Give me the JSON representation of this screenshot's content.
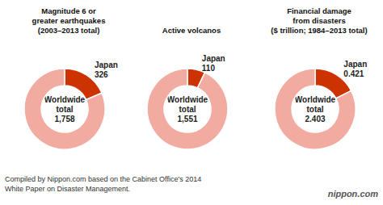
{
  "chart_data": [
    {
      "type": "pie",
      "title": "Magnitude 6 or\ngreater earthquakes\n(2003–2013 total)",
      "categories": [
        "Japan",
        null
      ],
      "values": [
        326,
        1432
      ],
      "value_labels": [
        "Japan\n326",
        null
      ],
      "colors": [
        "#cc3300",
        "#f2aba0"
      ],
      "annotations": [
        "Worldwide\ntotal\n1,758"
      ]
    },
    {
      "type": "pie",
      "title": "Active volcanos",
      "categories": [
        "Japan",
        null
      ],
      "values": [
        110,
        1441
      ],
      "value_labels": [
        "Japan\n110",
        null
      ],
      "colors": [
        "#cc3300",
        "#f2aba0"
      ],
      "annotations": [
        "Worldwide\ntotal\n1,551"
      ]
    },
    {
      "type": "pie",
      "title": "Financial damage\nfrom disasters\n($ trillion; 1984–2013 total)",
      "categories": [
        "Japan",
        null
      ],
      "values": [
        0.421,
        1.982
      ],
      "value_labels": [
        "Japan\n0.421",
        null
      ],
      "colors": [
        "#cc3300",
        "#f2aba0"
      ],
      "annotations": [
        "Worldwide\ntotal\n2.403"
      ]
    }
  ],
  "annotations": [
    "Compiled by Nippon.com based on the Cabinet Office's 2014\nWhite Paper on Disaster Management.",
    "nippon.com"
  ]
}
